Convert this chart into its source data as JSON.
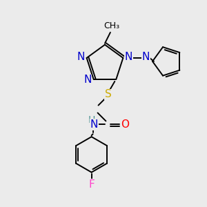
{
  "bg_color": "#ebebeb",
  "bond_color": "#000000",
  "atom_colors": {
    "N": "#0000cc",
    "S": "#ccaa00",
    "O": "#ff0000",
    "F": "#ff44cc",
    "H": "#4a9090",
    "C": "#000000"
  },
  "lw": 1.4,
  "font_size": 11
}
